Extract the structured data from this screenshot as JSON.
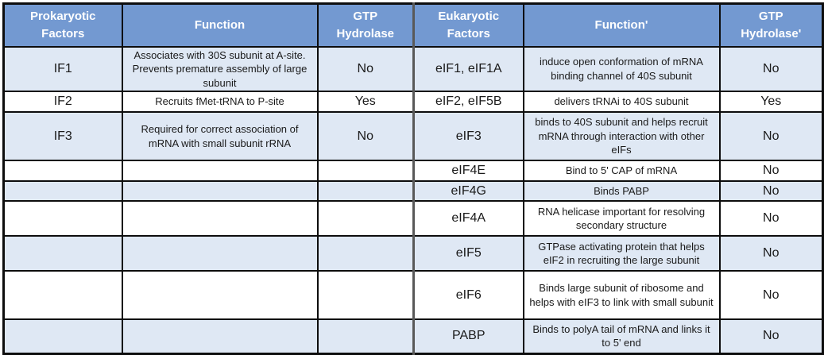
{
  "colors": {
    "header_bg": "#7399d1",
    "header_text": "#ffffff",
    "row_shade": "#dfe8f4",
    "row_plain": "#ffffff",
    "grid": "#0d0d0d",
    "divider": "#595959"
  },
  "table": {
    "columns": [
      {
        "label": "Prokaryotic\nFactors"
      },
      {
        "label": "Function"
      },
      {
        "label": "GTP\nHydrolase"
      },
      {
        "label": "Eukaryotic\nFactors"
      },
      {
        "label": "Function'"
      },
      {
        "label": "GTP\nHydrolase'"
      }
    ],
    "rows": [
      {
        "prokaryotic_factor": "IF1",
        "prokaryotic_function": "Associates with 30S subunit at A-site. Prevents premature assembly of large subunit",
        "gtp_hydrolase": "No",
        "eukaryotic_factor": "eIF1, eIF1A",
        "eukaryotic_function": "induce open conformation of mRNA binding channel of 40S subunit",
        "gtp_hydrolase_eu": "No"
      },
      {
        "prokaryotic_factor": "IF2",
        "prokaryotic_function": "Recruits fMet-tRNA to P-site",
        "gtp_hydrolase": "Yes",
        "eukaryotic_factor": "eIF2, eIF5B",
        "eukaryotic_function": "delivers tRNAi to 40S subunit",
        "gtp_hydrolase_eu": "Yes"
      },
      {
        "prokaryotic_factor": "IF3",
        "prokaryotic_function": "Required for correct association of mRNA with small subunit rRNA",
        "gtp_hydrolase": "No",
        "eukaryotic_factor": "eIF3",
        "eukaryotic_function": "binds to 40S subunit and helps recruit mRNA through interaction with other eIFs",
        "gtp_hydrolase_eu": "No"
      },
      {
        "prokaryotic_factor": "",
        "prokaryotic_function": "",
        "gtp_hydrolase": "",
        "eukaryotic_factor": "eIF4E",
        "eukaryotic_function": "Bind to 5' CAP of mRNA",
        "gtp_hydrolase_eu": "No"
      },
      {
        "prokaryotic_factor": "",
        "prokaryotic_function": "",
        "gtp_hydrolase": "",
        "eukaryotic_factor": "eIF4G",
        "eukaryotic_function": "Binds PABP",
        "gtp_hydrolase_eu": "No"
      },
      {
        "prokaryotic_factor": "",
        "prokaryotic_function": "",
        "gtp_hydrolase": "",
        "eukaryotic_factor": "eIF4A",
        "eukaryotic_function": "RNA helicase important for resolving secondary structure",
        "gtp_hydrolase_eu": "No"
      },
      {
        "prokaryotic_factor": "",
        "prokaryotic_function": "",
        "gtp_hydrolase": "",
        "eukaryotic_factor": "eIF5",
        "eukaryotic_function": "GTPase activating protein that helps eIF2 in recruiting the large subunit",
        "gtp_hydrolase_eu": "No"
      },
      {
        "prokaryotic_factor": "",
        "prokaryotic_function": "",
        "gtp_hydrolase": "",
        "eukaryotic_factor": "eIF6",
        "eukaryotic_function": "Binds large subunit of ribosome and helps with eIF3 to link with small subunit",
        "gtp_hydrolase_eu": "No"
      },
      {
        "prokaryotic_factor": "",
        "prokaryotic_function": "",
        "gtp_hydrolase": "",
        "eukaryotic_factor": "PABP",
        "eukaryotic_function": "Binds to polyA tail of mRNA and links it to 5' end",
        "gtp_hydrolase_eu": "No"
      }
    ]
  }
}
